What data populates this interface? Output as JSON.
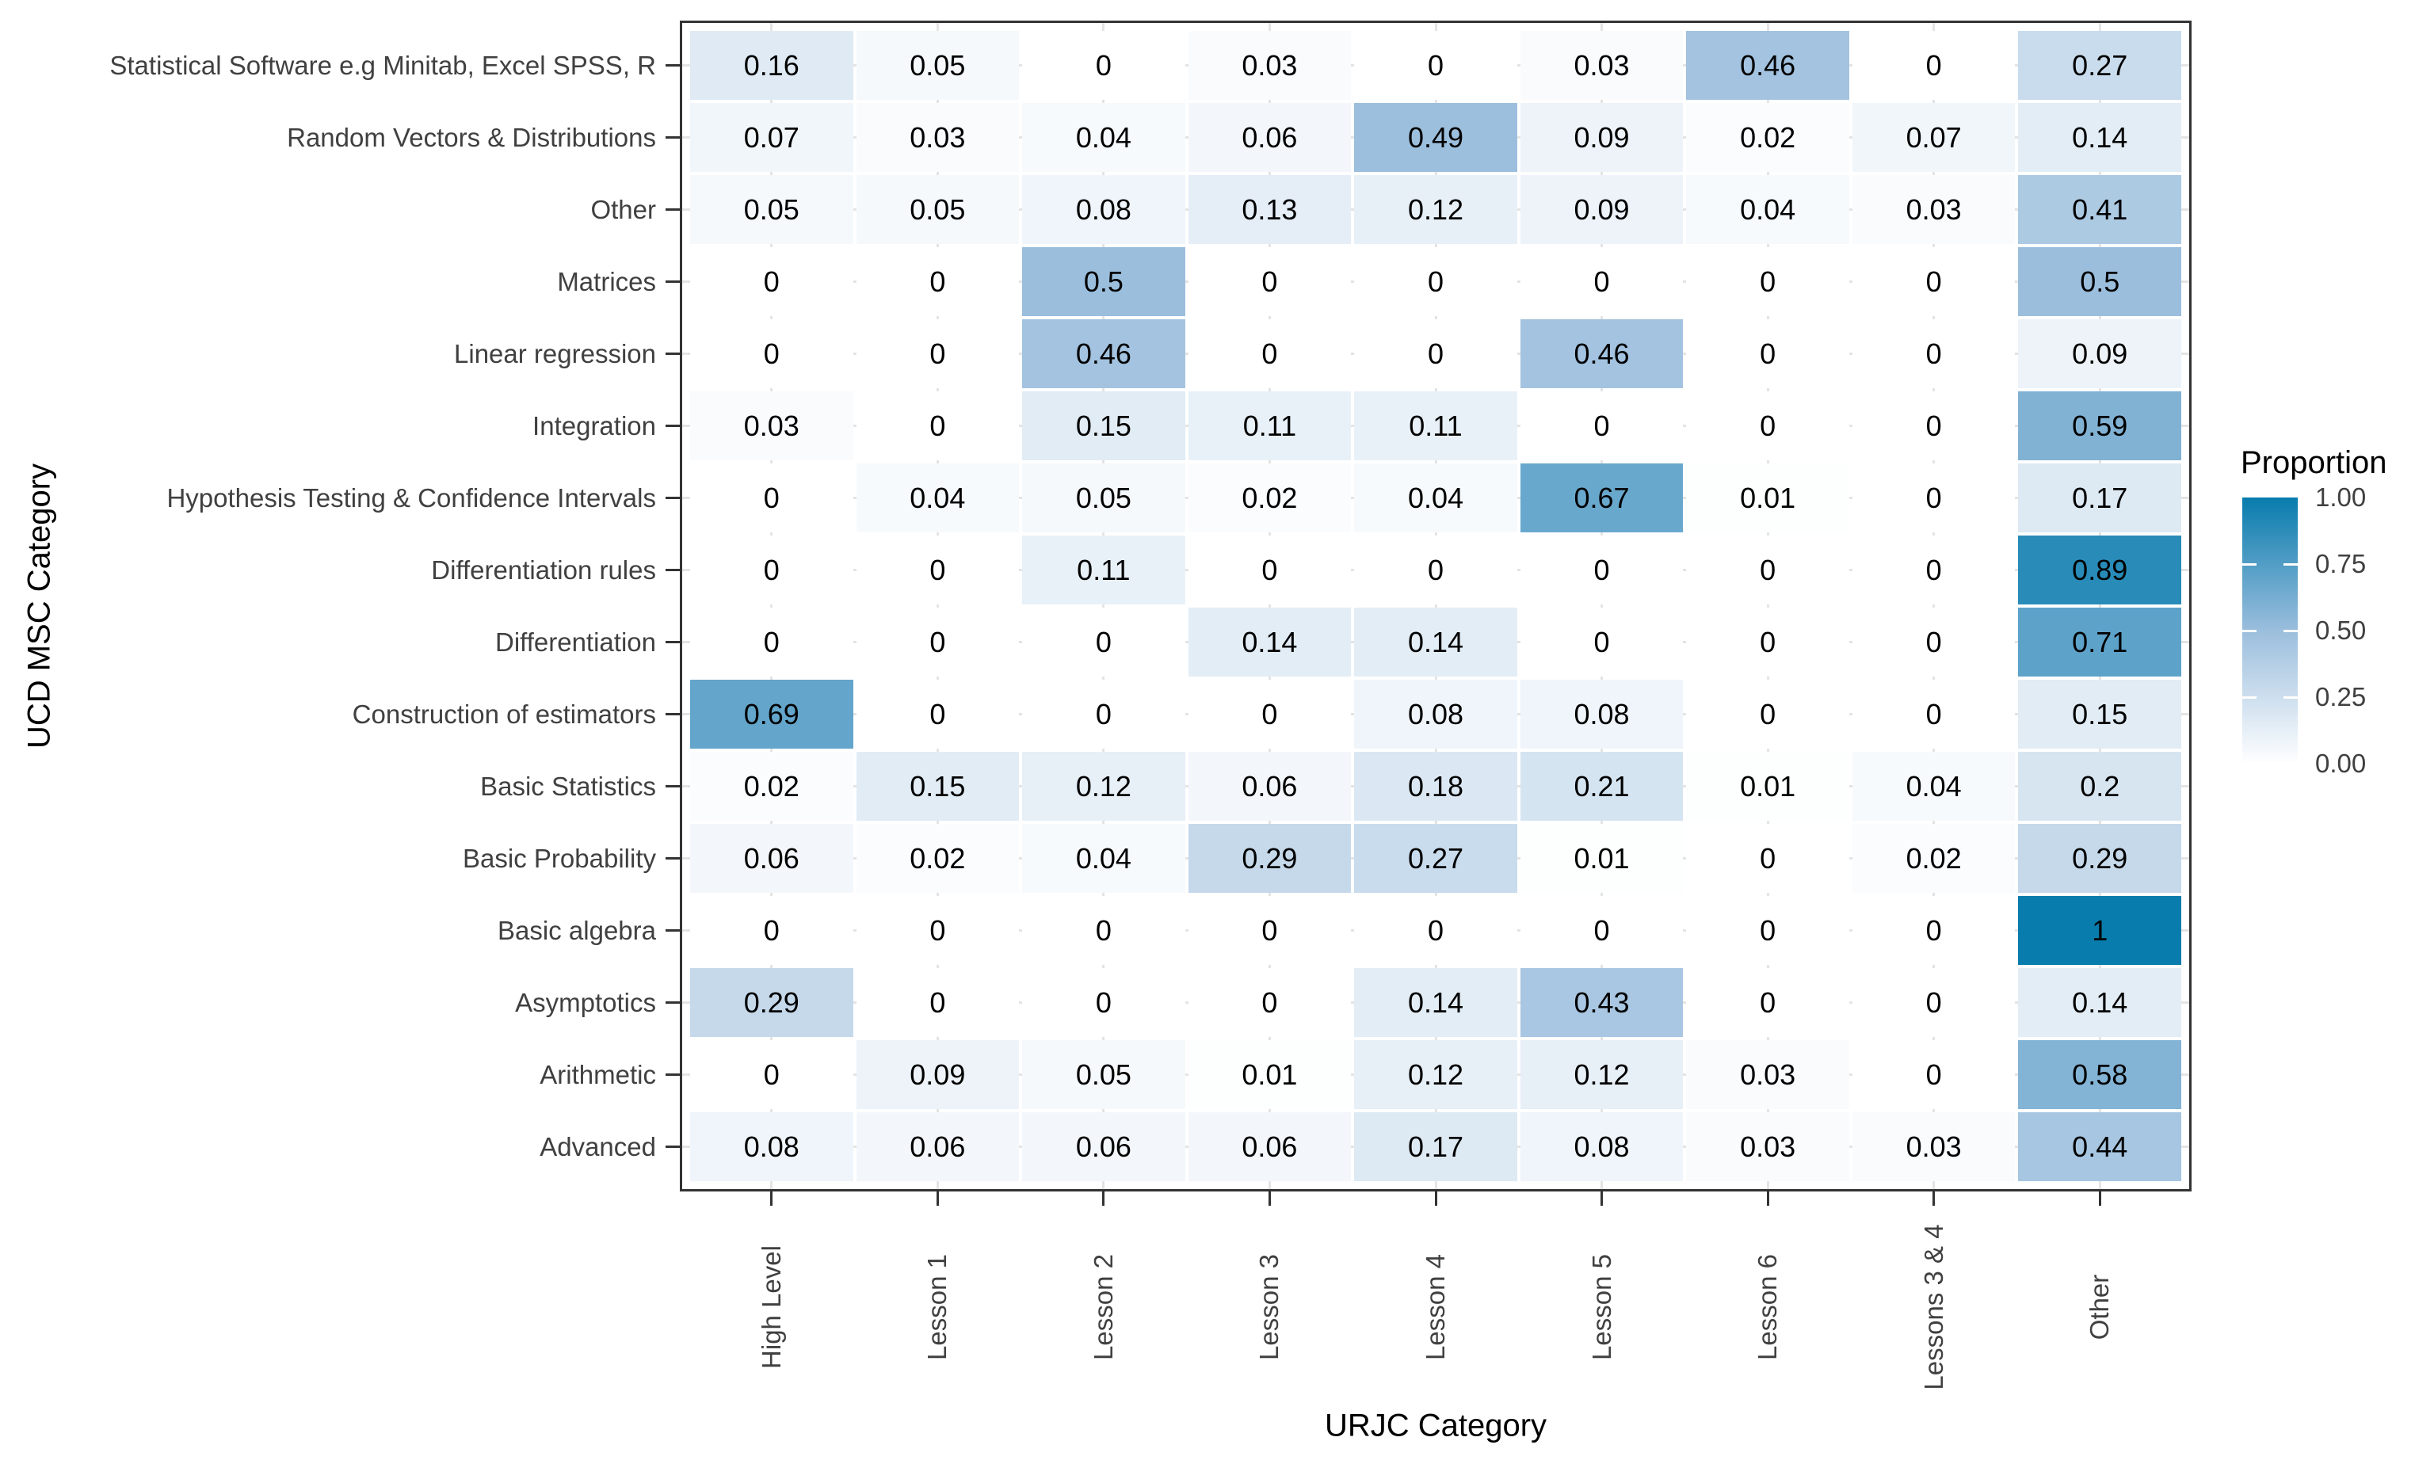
{
  "chart_data": {
    "type": "heatmap",
    "title": "",
    "xlabel": "URJC Category",
    "ylabel": "UCD MSC Category",
    "x_categories": [
      "High Level",
      "Lesson 1",
      "Lesson 2",
      "Lesson 3",
      "Lesson 4",
      "Lesson 5",
      "Lesson 6",
      "Lessons 3 & 4",
      "Other"
    ],
    "y_categories_top_to_bottom": [
      "Statistical Software e.g Minitab, Excel SPSS, R",
      "Random Vectors & Distributions",
      "Other",
      "Matrices",
      "Linear regression",
      "Integration",
      "Hypothesis Testing & Confidence Intervals",
      "Differentiation rules",
      "Differentiation",
      "Construction of estimators",
      "Basic Statistics",
      "Basic Probability",
      "Basic algebra",
      "Asymptotics",
      "Arithmetic",
      "Advanced"
    ],
    "values_row_major_top_first": [
      [
        0.16,
        0.05,
        0,
        0.03,
        0,
        0.03,
        0.46,
        0,
        0.27
      ],
      [
        0.07,
        0.03,
        0.04,
        0.06,
        0.49,
        0.09,
        0.02,
        0.07,
        0.14
      ],
      [
        0.05,
        0.05,
        0.08,
        0.13,
        0.12,
        0.09,
        0.04,
        0.03,
        0.41
      ],
      [
        0,
        0,
        0.5,
        0,
        0,
        0,
        0,
        0,
        0.5
      ],
      [
        0,
        0,
        0.46,
        0,
        0,
        0.46,
        0,
        0,
        0.09
      ],
      [
        0.03,
        0,
        0.15,
        0.11,
        0.11,
        0,
        0,
        0,
        0.59
      ],
      [
        0,
        0.04,
        0.05,
        0.02,
        0.04,
        0.67,
        0.01,
        0,
        0.17
      ],
      [
        0,
        0,
        0.11,
        0,
        0,
        0,
        0,
        0,
        0.89
      ],
      [
        0,
        0,
        0,
        0.14,
        0.14,
        0,
        0,
        0,
        0.71
      ],
      [
        0.69,
        0,
        0,
        0,
        0.08,
        0.08,
        0,
        0,
        0.15
      ],
      [
        0.02,
        0.15,
        0.12,
        0.06,
        0.18,
        0.21,
        0.01,
        0.04,
        0.2
      ],
      [
        0.06,
        0.02,
        0.04,
        0.29,
        0.27,
        0.01,
        0,
        0.02,
        0.29
      ],
      [
        0,
        0,
        0,
        0,
        0,
        0,
        0,
        0,
        1
      ],
      [
        0.29,
        0,
        0,
        0,
        0.14,
        0.43,
        0,
        0,
        0.14
      ],
      [
        0,
        0.09,
        0.05,
        0.01,
        0.12,
        0.12,
        0.03,
        0,
        0.58
      ],
      [
        0.08,
        0.06,
        0.06,
        0.06,
        0.17,
        0.08,
        0.03,
        0.03,
        0.44
      ]
    ],
    "value_range": [
      0,
      1
    ],
    "grid": true,
    "legend": {
      "title": "Proportion",
      "position": "right",
      "tick_labels": [
        "1.00",
        "0.75",
        "0.50",
        "0.25",
        "0.00"
      ],
      "min": 0,
      "max": 1
    },
    "color_scale": {
      "anchors": [
        {
          "t": 0,
          "color": "#ffffff"
        },
        {
          "t": 0.5,
          "color": "#9bbedd"
        },
        {
          "t": 1,
          "color": "#087cad"
        }
      ]
    }
  },
  "styles": {
    "panel_border": "#333333",
    "axis_text": "#404040",
    "axis_title": "#000000",
    "gridline": "#e4e4e4",
    "cell_text": "#000000",
    "tick": "#333333",
    "background": "#ffffff"
  }
}
